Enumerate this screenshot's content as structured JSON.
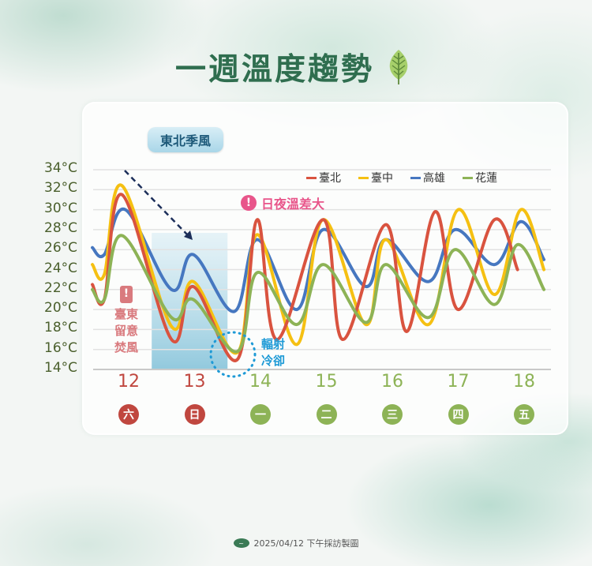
{
  "title": "一週溫度趨勢",
  "title_icon": "leaf-icon",
  "badge": "東北季風",
  "alert": {
    "icon": "!",
    "text": "日夜溫差大",
    "color": "#e8558a"
  },
  "foehn_note": {
    "icon": "!",
    "lines": [
      "臺東",
      "留意",
      "焚風"
    ],
    "color": "#d97a7e"
  },
  "radiative_note": {
    "lines": [
      "輻射",
      "冷卻"
    ],
    "color": "#1e9ad6"
  },
  "footer": {
    "logo": "cwa-logo-icon",
    "text": "2025/04/12 下午採訪製圖"
  },
  "colors": {
    "taipei": "#d9533f",
    "taichung": "#f5c012",
    "kaohsiung": "#4677c0",
    "hualien": "#8db356",
    "weekend": "#c0473f",
    "weekday": "#8db356",
    "title": "#2f6e4f"
  },
  "chart_data": {
    "type": "line",
    "title": "一週溫度趨勢",
    "xlabel": "",
    "ylabel": "",
    "ylim": [
      14,
      34
    ],
    "yticks": [
      "34°C",
      "32°C",
      "30°C",
      "28°C",
      "26°C",
      "24°C",
      "22°C",
      "20°C",
      "18°C",
      "16°C",
      "14°C"
    ],
    "grid": true,
    "legend_position": "top-right",
    "categories": [
      "12",
      "13",
      "14",
      "15",
      "16",
      "17",
      "18"
    ],
    "weekday_labels": [
      "六",
      "日",
      "一",
      "二",
      "三",
      "四",
      "五"
    ],
    "x_note": "approx. 3-hourly samples; x in day units starting day 12 at 0",
    "series": [
      {
        "name": "臺北",
        "color": "#d9533f",
        "x": [
          -0.55,
          -0.37,
          -0.1,
          0.65,
          0.98,
          1.65,
          1.95,
          2.25,
          2.95,
          3.25,
          3.9,
          4.22,
          4.65,
          5.0,
          5.55,
          5.9
        ],
        "values": [
          22.5,
          21.0,
          31.5,
          17.0,
          22.3,
          15.0,
          29.0,
          17.0,
          29.0,
          17.0,
          28.5,
          17.8,
          29.8,
          20.0,
          29.0,
          24.0
        ]
      },
      {
        "name": "臺中",
        "color": "#f5c012",
        "x": [
          -0.55,
          -0.37,
          -0.1,
          0.65,
          0.98,
          1.65,
          1.95,
          2.55,
          2.95,
          3.6,
          3.9,
          4.55,
          5.0,
          5.55,
          5.95,
          6.3
        ],
        "values": [
          24.5,
          23.5,
          32.4,
          18.3,
          22.8,
          15.7,
          27.5,
          16.5,
          29.0,
          18.5,
          27.0,
          18.5,
          30.0,
          21.5,
          30.0,
          24.0
        ]
      },
      {
        "name": "高雄",
        "color": "#4677c0",
        "x": [
          -0.55,
          -0.37,
          -0.05,
          0.65,
          0.98,
          1.6,
          1.95,
          2.55,
          2.95,
          3.6,
          3.9,
          4.55,
          4.95,
          5.55,
          5.95,
          6.3
        ],
        "values": [
          26.2,
          25.5,
          30.0,
          22.0,
          25.5,
          19.8,
          27.0,
          20.0,
          28.0,
          22.3,
          27.0,
          22.8,
          28.0,
          24.5,
          28.8,
          25.0
        ]
      },
      {
        "name": "花蓮",
        "color": "#8db356",
        "x": [
          -0.55,
          -0.37,
          -0.1,
          0.65,
          0.98,
          1.65,
          1.95,
          2.55,
          2.95,
          3.6,
          3.9,
          4.55,
          4.95,
          5.55,
          5.9,
          6.3
        ],
        "values": [
          22.0,
          21.0,
          27.4,
          19.2,
          21.0,
          15.8,
          23.7,
          18.5,
          24.5,
          18.7,
          24.5,
          19.2,
          26.0,
          20.5,
          26.5,
          22.0
        ]
      }
    ],
    "annotations": [
      {
        "type": "shaded_band",
        "label": "東北季風",
        "x_range": [
          0.35,
          1.5
        ]
      },
      {
        "type": "dashed_arrow",
        "direction": "down-right",
        "from_x": -0.05,
        "to_x": 1.0
      },
      {
        "type": "text",
        "text": "日夜溫差大"
      },
      {
        "type": "text",
        "text": "臺東留意焚風"
      },
      {
        "type": "dotted_circle",
        "text": "輻射冷卻",
        "x": 1.65
      }
    ]
  }
}
